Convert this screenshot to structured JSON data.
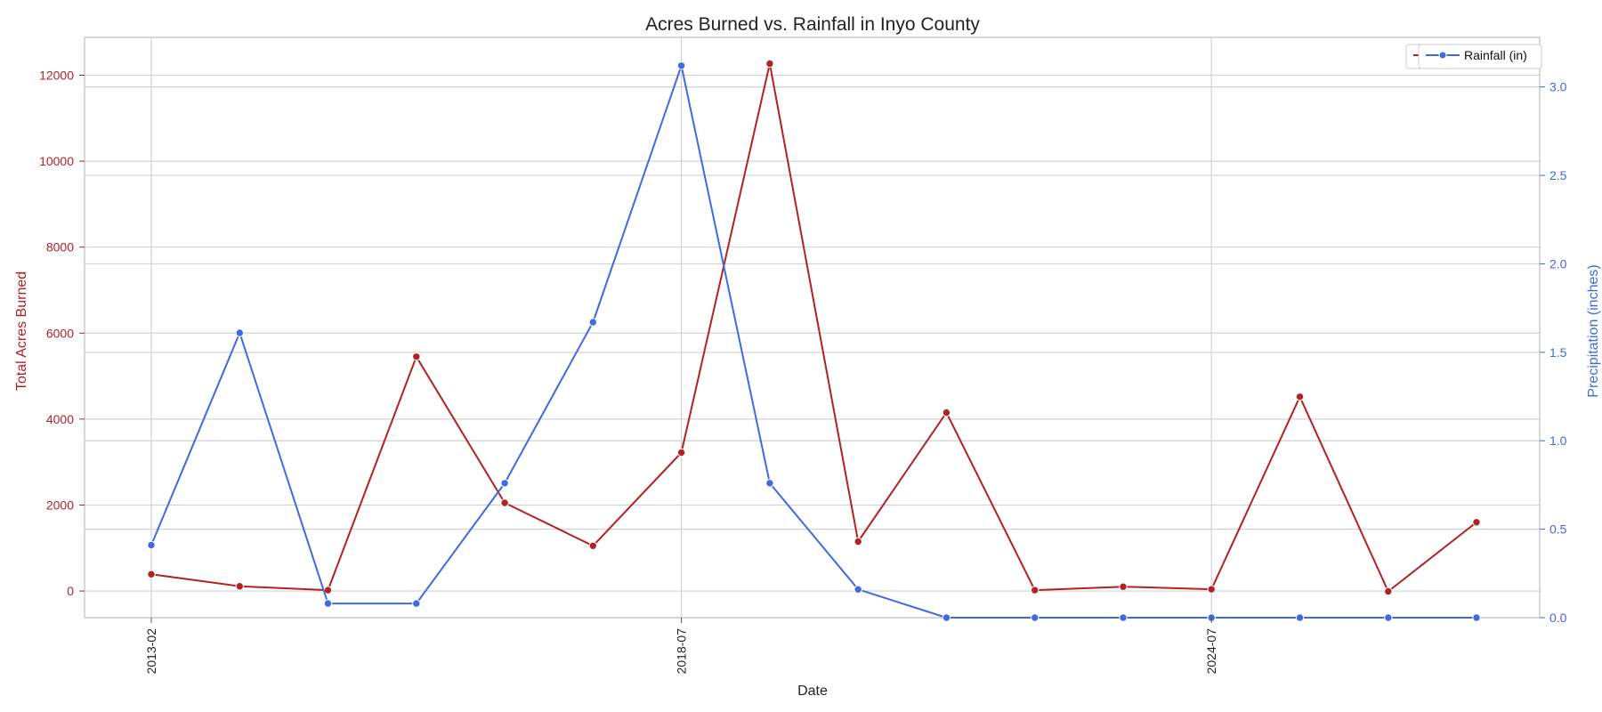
{
  "chart_data": {
    "type": "line",
    "title": "Acres Burned vs. Rainfall in Inyo County",
    "xlabel": "Date",
    "x": [
      "2013-02",
      "",
      "",
      "",
      "",
      "",
      "2018-07",
      "",
      "",
      "",
      "",
      "",
      "2024-07",
      "",
      "",
      ""
    ],
    "xtick_labels": [
      "2013-02",
      "2018-07",
      "2024-07"
    ],
    "series": [
      {
        "name": "Acres Burned",
        "axis": "left",
        "color": "#b22222",
        "marker": "circle",
        "values": [
          390,
          110,
          20,
          5450,
          2050,
          1050,
          3220,
          12270,
          1150,
          4150,
          20,
          100,
          40,
          4520,
          -10,
          1600
        ]
      },
      {
        "name": "Rainfall (in)",
        "axis": "right",
        "color": "#4169e1",
        "marker": "circle",
        "values": [
          0.41,
          1.61,
          0.08,
          0.08,
          0.76,
          1.67,
          3.12,
          0.76,
          0.16,
          0.0,
          0.0,
          0.0,
          0.0,
          0.0,
          0.0,
          0.0
        ]
      }
    ],
    "y_left": {
      "label": "Total Acres Burned",
      "range": [
        -620,
        12880
      ],
      "ticks": [
        0,
        2000,
        4000,
        6000,
        8000,
        10000,
        12000
      ],
      "tick_labels": [
        "0",
        "2000",
        "4000",
        "6000",
        "8000",
        "10000",
        "12000"
      ]
    },
    "y_right": {
      "label": "Precipitation (inches)",
      "range": [
        0.0,
        3.28
      ],
      "ticks": [
        0.0,
        0.5,
        1.0,
        1.5,
        2.0,
        2.5,
        3.0
      ],
      "tick_labels": [
        "0.0",
        "0.5",
        "1.0",
        "1.5",
        "2.0",
        "2.5",
        "3.0"
      ]
    },
    "grid": true,
    "legend": {
      "placement": "top-right",
      "visible_entries": [
        "Rainfall (in)"
      ],
      "stacked_entries": [
        "Acres Burned",
        "Rainfall (in)"
      ]
    },
    "colors": {
      "acres": "#b22222",
      "rain": "#4169e1",
      "grid": "#d3d3d3",
      "frame": "#cccccc"
    }
  }
}
